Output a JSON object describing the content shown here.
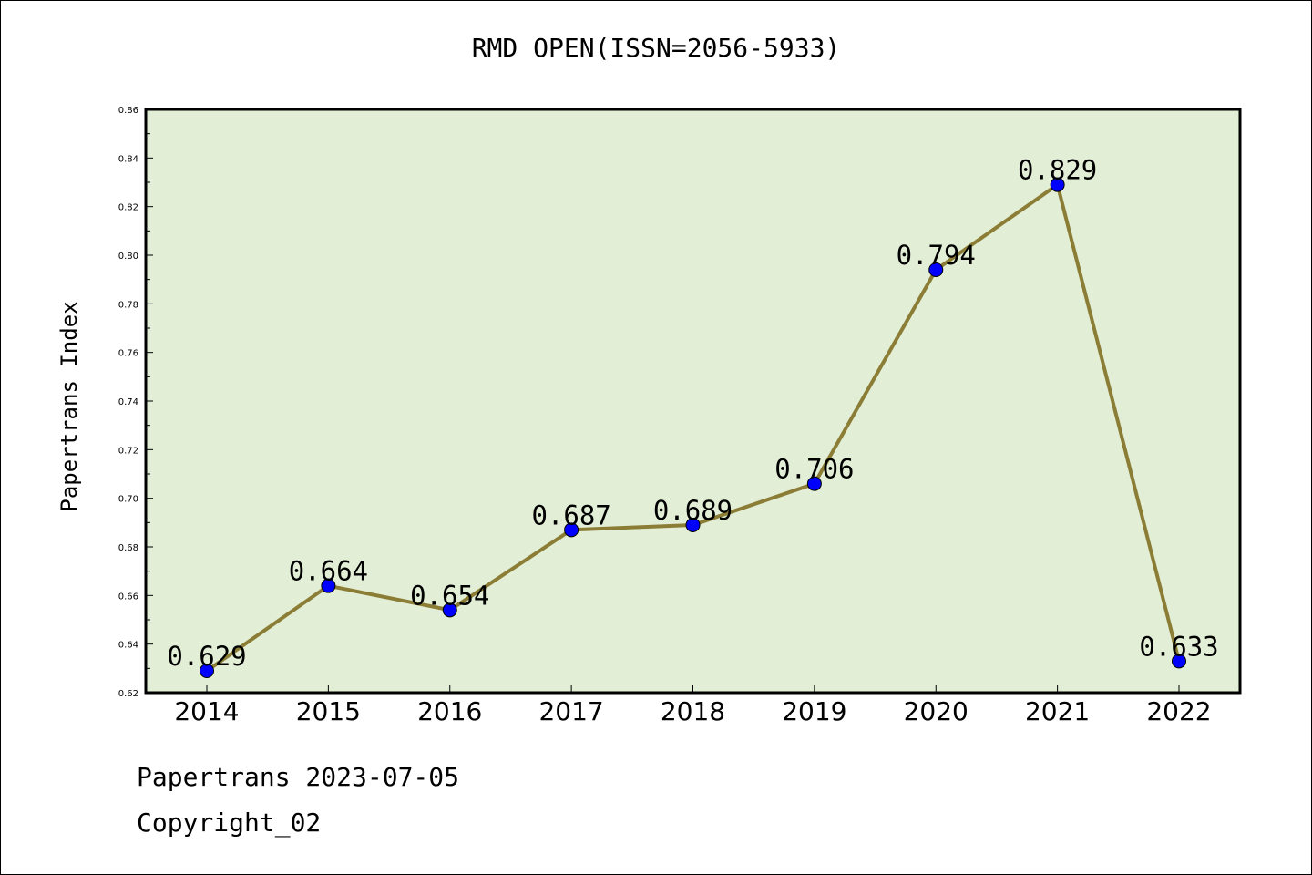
{
  "title": "RMD OPEN(ISSN=2056-5933)",
  "footer": {
    "date_line": "Papertrans 2023-07-05",
    "copyright_line": "Copyright_02"
  },
  "chart_data": {
    "type": "line",
    "title": "RMD OPEN(ISSN=2056-5933)",
    "xlabel": "",
    "ylabel": "Papertrans Index",
    "categories": [
      "2014",
      "2015",
      "2016",
      "2017",
      "2018",
      "2019",
      "2020",
      "2021",
      "2022"
    ],
    "values": [
      0.629,
      0.664,
      0.654,
      0.687,
      0.689,
      0.706,
      0.794,
      0.829,
      0.633
    ],
    "data_labels": [
      "0.629",
      "0.664",
      "0.654",
      "0.687",
      "0.689",
      "0.706",
      "0.794",
      "0.829",
      "0.633"
    ],
    "ylim": [
      0.62,
      0.86
    ],
    "y_ticks": [
      "0.62",
      "0.64",
      "0.66",
      "0.68",
      "0.70",
      "0.72",
      "0.74",
      "0.76",
      "0.78",
      "0.80",
      "0.82",
      "0.84",
      "0.86"
    ],
    "grid": false,
    "colors": {
      "plot_background": "#e2efd6",
      "line": "#8b7d35",
      "marker": "#0000ff"
    }
  }
}
